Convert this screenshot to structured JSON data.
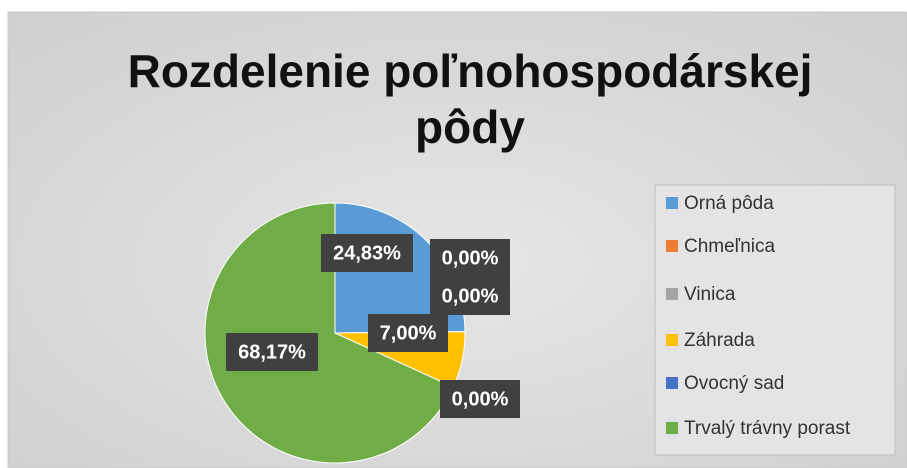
{
  "chart_data": {
    "type": "pie",
    "title": "Rozdelenie poľnohospodárskej pôdy",
    "categories": [
      "Orná pôda",
      "Chmeľnica",
      "Vinica",
      "Záhrada",
      "Ovocný sad",
      "Trvalý trávny porast"
    ],
    "values": [
      24.83,
      0,
      0,
      7,
      0,
      68.17
    ],
    "value_labels": [
      "24,83%",
      "0,00%",
      "0,00%",
      "7,00%",
      "0,00%",
      "68,17%"
    ],
    "colors": [
      "#5b9bd5",
      "#ed7d31",
      "#a5a5a5",
      "#ffc000",
      "#4472c4",
      "#70ad47"
    ],
    "legend": "right"
  }
}
